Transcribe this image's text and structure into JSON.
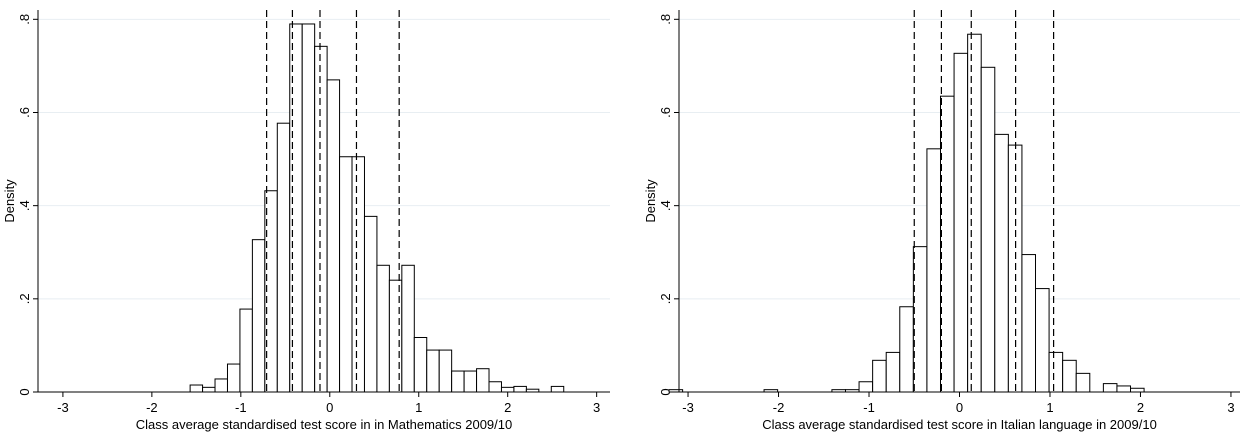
{
  "chart_data": [
    {
      "type": "histogram",
      "xlabel": "Class average standardised test score in in Mathematics 2009/10",
      "ylabel": "Density",
      "bins": [
        -1.57,
        -1.43,
        -1.29,
        -1.15,
        -1.01,
        -0.87,
        -0.73,
        -0.59,
        -0.45,
        -0.31,
        -0.17,
        -0.03,
        0.11,
        0.25,
        0.39,
        0.53,
        0.67,
        0.81,
        0.95,
        1.09,
        1.23,
        1.37,
        1.51,
        1.65,
        1.79,
        1.93,
        2.07,
        2.21,
        2.35,
        2.49,
        2.63
      ],
      "values": [
        0.015,
        0.01,
        0.028,
        0.06,
        0.178,
        0.327,
        0.432,
        0.577,
        0.79,
        0.79,
        0.742,
        0.67,
        0.505,
        0.505,
        0.377,
        0.272,
        0.24,
        0.272,
        0.117,
        0.09,
        0.09,
        0.045,
        0.045,
        0.05,
        0.022,
        0.01,
        0.012,
        0.006,
        0,
        0.012
      ],
      "reference_lines": [
        -0.71,
        -0.42,
        -0.11,
        0.3,
        0.78
      ],
      "xlim": [
        -3.28,
        3.15
      ],
      "ylim": [
        0,
        0.82
      ],
      "xticks": [
        -3,
        -2,
        -1,
        0,
        1,
        2,
        3
      ],
      "yticks": [
        0,
        {
          "value": 0.2,
          "label": ".2"
        },
        {
          "value": 0.4,
          "label": ".4"
        },
        {
          "value": 0.6,
          "label": ".6"
        },
        {
          "value": 0.8,
          "label": ".8"
        }
      ],
      "grid": true
    },
    {
      "type": "histogram",
      "xlabel": "Class average standardised test score in Italian language in 2009/10",
      "ylabel": "Density",
      "bins": [
        -3.21,
        -3.06,
        -2.91,
        -2.76,
        -2.61,
        -2.46,
        -2.31,
        -2.16,
        -2.01,
        -1.86,
        -1.71,
        -1.56,
        -1.41,
        -1.26,
        -1.11,
        -0.96,
        -0.81,
        -0.66,
        -0.51,
        -0.36,
        -0.21,
        -0.06,
        0.09,
        0.24,
        0.39,
        0.54,
        0.69,
        0.84,
        0.99,
        1.14,
        1.29,
        1.44,
        1.59,
        1.74,
        1.89,
        2.04
      ],
      "values": [
        0.005,
        0,
        0,
        0,
        0,
        0,
        0,
        0.005,
        0,
        0,
        0,
        0,
        0.005,
        0.005,
        0.022,
        0.068,
        0.085,
        0.183,
        0.312,
        0.522,
        0.635,
        0.727,
        0.768,
        0.697,
        0.553,
        0.53,
        0.295,
        0.222,
        0.085,
        0.068,
        0.04,
        0,
        0.018,
        0.013,
        0.008
      ],
      "reference_lines": [
        -0.5,
        -0.2,
        0.13,
        0.62,
        1.04
      ],
      "xlim": [
        -3.1,
        3.1
      ],
      "ylim": [
        0,
        0.82
      ],
      "xticks": [
        -3,
        -2,
        -1,
        0,
        1,
        2,
        3
      ],
      "yticks": [
        0,
        {
          "value": 0.2,
          "label": ".2"
        },
        {
          "value": 0.4,
          "label": ".4"
        },
        {
          "value": 0.6,
          "label": ".6"
        },
        {
          "value": 0.8,
          "label": ".8"
        }
      ],
      "grid": true
    }
  ]
}
